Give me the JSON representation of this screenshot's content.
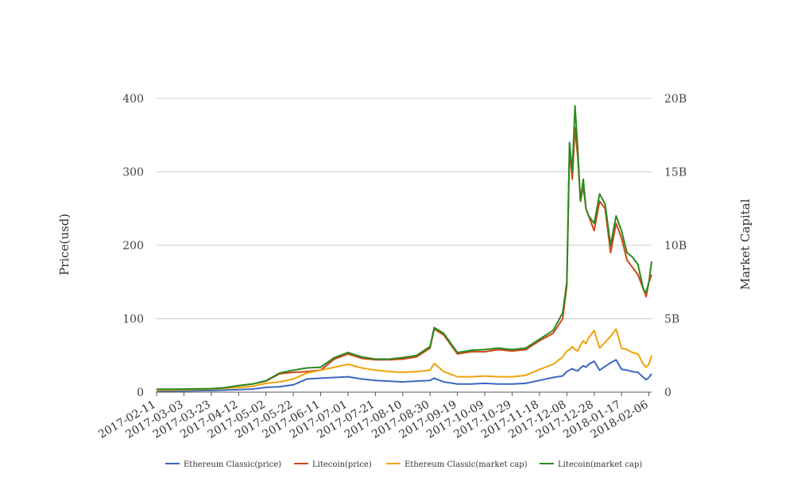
{
  "chart_data": {
    "type": "line",
    "title": "",
    "y_left_label": "Price(usd)",
    "y_right_label": "Market Capital",
    "y_left_ticks": [
      "0",
      "100",
      "200",
      "300",
      "400"
    ],
    "y_left_range": [
      0,
      400
    ],
    "y_right_ticks": [
      "0",
      "5B",
      "10B",
      "15B",
      "20B"
    ],
    "y_right_range": [
      0,
      20000000000
    ],
    "grid": true,
    "legend_position": "bottom",
    "x_tick_labels": [
      "2017-02-11",
      "2017-03-03",
      "2017-03-23",
      "2017-04-12",
      "2017-05-02",
      "2017-05-22",
      "2017-06-11",
      "2017-07-01",
      "2017-07-21",
      "2017-08-10",
      "2017-08-30",
      "2017-09-19",
      "2017-10-09",
      "2017-10-29",
      "2017-11-18",
      "2017-12-08",
      "2017-12-28",
      "2018-01-17",
      "2018-02-06"
    ],
    "x": [
      "2017-02-11",
      "2017-02-21",
      "2017-03-03",
      "2017-03-13",
      "2017-03-23",
      "2017-04-02",
      "2017-04-12",
      "2017-04-22",
      "2017-05-02",
      "2017-05-12",
      "2017-05-22",
      "2017-06-01",
      "2017-06-11",
      "2017-06-21",
      "2017-07-01",
      "2017-07-11",
      "2017-07-21",
      "2017-07-31",
      "2017-08-10",
      "2017-08-20",
      "2017-08-30",
      "2017-09-02",
      "2017-09-09",
      "2017-09-19",
      "2017-09-29",
      "2017-10-09",
      "2017-10-19",
      "2017-10-29",
      "2017-11-08",
      "2017-11-18",
      "2017-11-28",
      "2017-12-05",
      "2017-12-08",
      "2017-12-10",
      "2017-12-12",
      "2017-12-14",
      "2017-12-16",
      "2017-12-18",
      "2017-12-20",
      "2017-12-22",
      "2017-12-24",
      "2017-12-28",
      "2018-01-01",
      "2018-01-05",
      "2018-01-09",
      "2018-01-13",
      "2018-01-17",
      "2018-01-21",
      "2018-01-25",
      "2018-01-29",
      "2018-02-02",
      "2018-02-04",
      "2018-02-06",
      "2018-02-08"
    ],
    "series": [
      {
        "name": "Ethereum Classic(price)",
        "axis": "left",
        "color": "#3b68c0",
        "values": [
          1.5,
          1.6,
          1.7,
          2.0,
          2.3,
          2.8,
          3.4,
          4.2,
          6.5,
          7.5,
          10,
          18,
          19,
          20,
          21,
          18,
          16,
          15,
          14,
          15,
          16,
          19,
          14,
          11,
          11,
          12,
          11,
          11,
          12,
          16,
          20,
          22,
          28,
          30,
          32,
          30,
          29,
          33,
          36,
          34,
          38,
          42,
          30,
          35,
          40,
          44,
          31,
          30,
          28,
          27,
          20,
          17,
          20,
          25
        ]
      },
      {
        "name": "Litecoin(price)",
        "axis": "left",
        "color": "#d1461a",
        "values": [
          3.7,
          3.8,
          3.9,
          4.2,
          4.5,
          6,
          9,
          11,
          15,
          25,
          27,
          28,
          30,
          45,
          52,
          46,
          44,
          44,
          45,
          48,
          60,
          86,
          78,
          52,
          55,
          55,
          58,
          56,
          58,
          70,
          80,
          100,
          145,
          330,
          290,
          360,
          320,
          260,
          280,
          250,
          240,
          220,
          260,
          250,
          190,
          230,
          210,
          180,
          170,
          160,
          140,
          130,
          150,
          160
        ]
      },
      {
        "name": "Ethereum Classic(market cap)",
        "axis": "right",
        "color": "#f0a30a",
        "values": [
          135000000,
          145000000,
          160000000,
          190000000,
          215000000,
          265000000,
          320000000,
          390000000,
          600000000,
          700000000,
          900000000,
          1300000000,
          1500000000,
          1700000000,
          1900000000,
          1650000000,
          1500000000,
          1400000000,
          1350000000,
          1400000000,
          1500000000,
          1950000000,
          1400000000,
          1050000000,
          1050000000,
          1100000000,
          1050000000,
          1050000000,
          1150000000,
          1550000000,
          1900000000,
          2400000000,
          2800000000,
          2900000000,
          3100000000,
          2900000000,
          2800000000,
          3200000000,
          3500000000,
          3300000000,
          3700000000,
          4200000000,
          3000000000,
          3400000000,
          3800000000,
          4300000000,
          3000000000,
          2900000000,
          2700000000,
          2600000000,
          1900000000,
          1700000000,
          1900000000,
          2500000000
        ]
      },
      {
        "name": "Litecoin(market cap)",
        "axis": "right",
        "color": "#2a8a20",
        "values": [
          200000000,
          200000000,
          210000000,
          220000000,
          240000000,
          300000000,
          450000000,
          550000000,
          780000000,
          1300000000,
          1500000000,
          1650000000,
          1700000000,
          2350000000,
          2700000000,
          2400000000,
          2250000000,
          2250000000,
          2350000000,
          2500000000,
          3100000000,
          4400000000,
          4000000000,
          2700000000,
          2850000000,
          2900000000,
          3000000000,
          2900000000,
          3000000000,
          3600000000,
          4200000000,
          5400000000,
          7500000000,
          17000000000,
          15000000000,
          19500000000,
          16500000000,
          13000000000,
          14500000000,
          12500000000,
          12000000000,
          11500000000,
          13500000000,
          12800000000,
          10000000000,
          12000000000,
          11000000000,
          9500000000,
          9200000000,
          8700000000,
          7000000000,
          6800000000,
          7500000000,
          8900000000
        ]
      }
    ]
  }
}
